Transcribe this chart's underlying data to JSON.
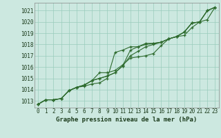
{
  "xlabel": "Graphe pression niveau de la mer (hPa)",
  "x_ticks": [
    0,
    1,
    2,
    3,
    4,
    5,
    6,
    7,
    8,
    9,
    10,
    11,
    12,
    13,
    14,
    15,
    16,
    17,
    18,
    19,
    20,
    21,
    22,
    23
  ],
  "ylim": [
    1012.4,
    1021.7
  ],
  "xlim": [
    -0.5,
    23.5
  ],
  "yticks": [
    1013,
    1014,
    1015,
    1016,
    1017,
    1018,
    1019,
    1020,
    1021
  ],
  "bg_color": "#cce8e0",
  "grid_color": "#99ccbb",
  "line_color": "#2d6a2d",
  "line1": [
    1012.7,
    1013.1,
    1013.1,
    1013.2,
    1013.9,
    1014.2,
    1014.3,
    1014.5,
    1014.6,
    1015.0,
    1017.3,
    1017.5,
    1017.8,
    1017.8,
    1018.1,
    1018.1,
    1018.2,
    1018.5,
    1018.7,
    1019.1,
    1019.9,
    1020.0,
    1021.0,
    1021.3
  ],
  "line2": [
    1012.7,
    1013.1,
    1013.1,
    1013.2,
    1013.9,
    1014.2,
    1014.4,
    1014.8,
    1015.0,
    1015.2,
    1015.5,
    1016.1,
    1017.5,
    1017.8,
    1018.0,
    1018.1,
    1018.2,
    1018.5,
    1018.7,
    1019.1,
    1019.9,
    1020.0,
    1021.0,
    1021.3
  ],
  "line3": [
    1012.7,
    1013.1,
    1013.1,
    1013.2,
    1013.9,
    1014.2,
    1014.4,
    1014.8,
    1015.0,
    1015.2,
    1015.5,
    1016.1,
    1017.0,
    1017.4,
    1017.8,
    1018.0,
    1018.2,
    1018.5,
    1018.7,
    1019.1,
    1019.9,
    1020.0,
    1021.0,
    1021.3
  ],
  "line4": [
    1012.7,
    1013.1,
    1013.1,
    1013.2,
    1013.9,
    1014.2,
    1014.4,
    1014.8,
    1015.5,
    1015.5,
    1015.7,
    1016.2,
    1016.8,
    1016.9,
    1017.0,
    1017.2,
    1017.9,
    1018.5,
    1018.7,
    1018.8,
    1019.5,
    1020.0,
    1020.2,
    1021.3
  ],
  "tick_color": "#1a3a1a",
  "tick_fontsize": 5.5,
  "xlabel_fontsize": 6.5,
  "marker_size": 3.5,
  "linewidth": 0.8
}
